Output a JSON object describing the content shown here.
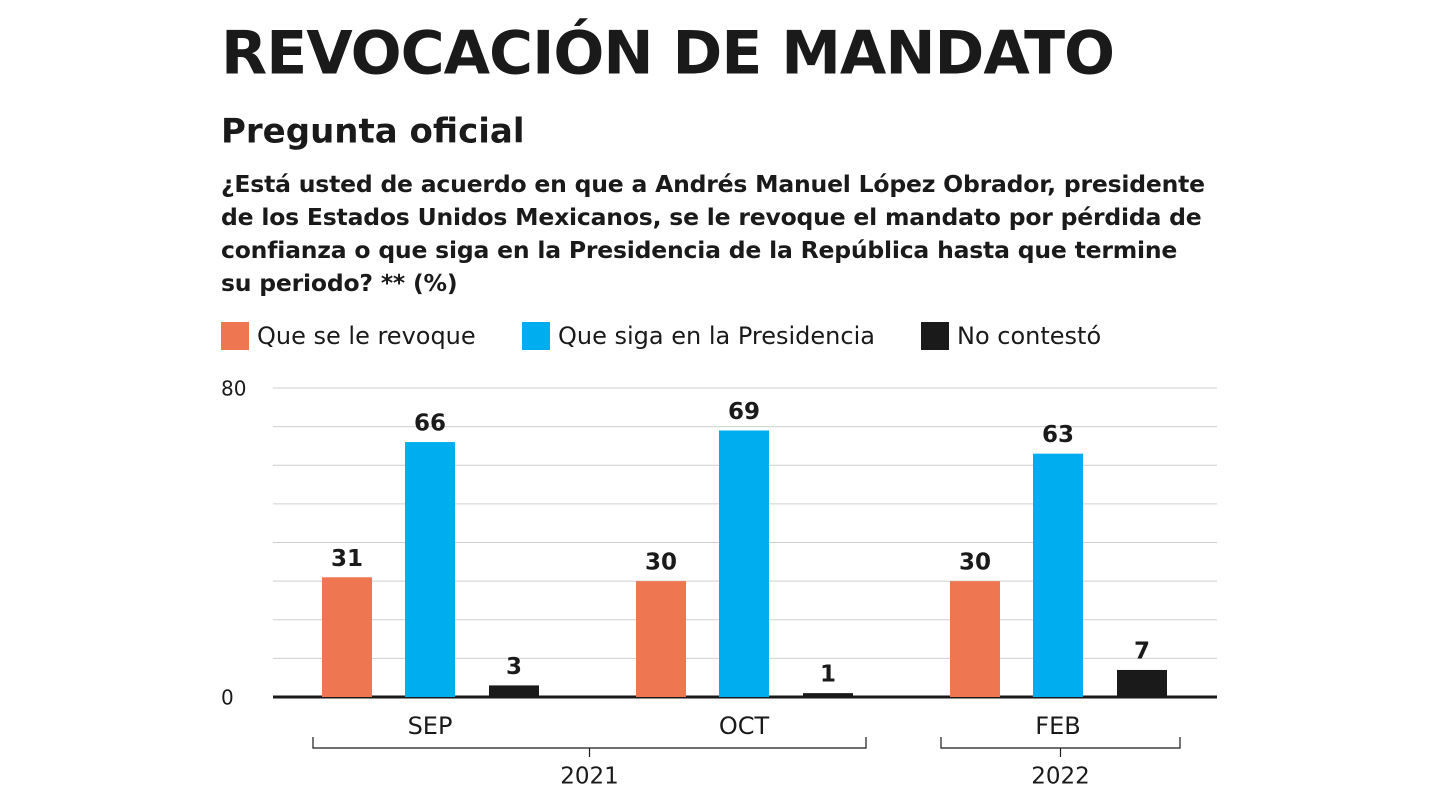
{
  "chart_data": {
    "type": "bar",
    "title": "REVOCACIÓN DE MANDATO",
    "subtitle": "Pregunta oficial",
    "question": "¿Está usted de acuerdo en que a Andrés Manuel López Obrador, presidente de los Estados Unidos Mexicanos, se le revoque el mandato por pérdida de confianza o que siga en la Presidencia de la República hasta que termine su periodo? ** (%)",
    "categories": [
      "SEP",
      "OCT",
      "FEB"
    ],
    "x_groups": [
      {
        "label": "2021",
        "size": 2
      },
      {
        "label": "2022",
        "size": 1
      }
    ],
    "series": [
      {
        "name": "Que se le revoque",
        "color": "#ee7650",
        "values": [
          31,
          30,
          30
        ]
      },
      {
        "name": "Que siga en la Presidencia",
        "color": "#00aeef",
        "values": [
          66,
          69,
          63
        ]
      },
      {
        "name": "No contestó",
        "color": "#1a1a1a",
        "values": [
          3,
          1,
          7
        ]
      }
    ],
    "ylim": [
      0,
      80
    ],
    "yticks": [
      0,
      {
        "value": 10,
        "label": null
      },
      {
        "value": 20,
        "label": null
      },
      {
        "value": 30,
        "label": null
      },
      {
        "value": 40,
        "label": null
      },
      {
        "value": 50,
        "label": null
      },
      {
        "value": 60,
        "label": null
      },
      {
        "value": 70,
        "label": null
      },
      80
    ],
    "grid": true
  }
}
